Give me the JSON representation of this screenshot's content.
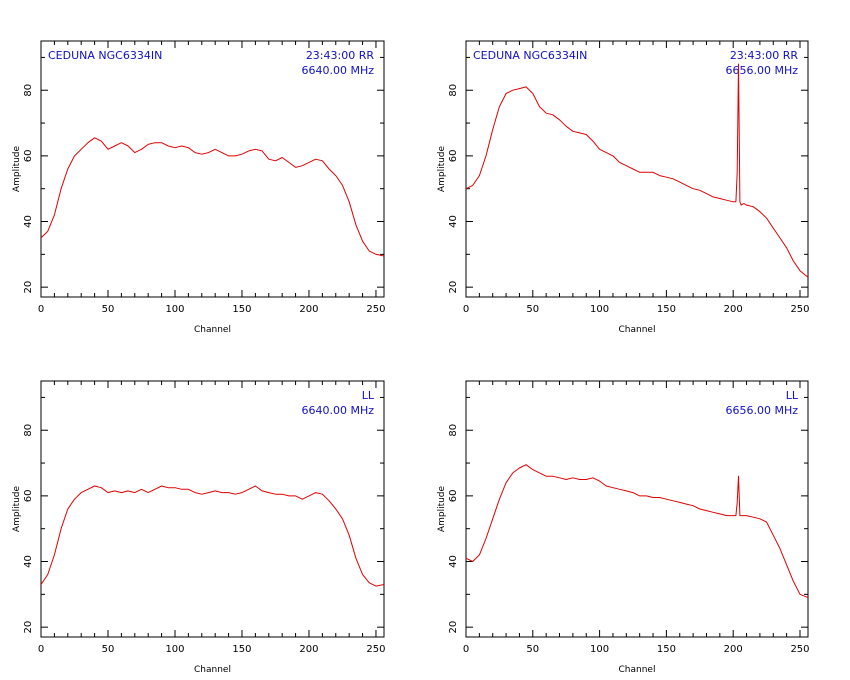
{
  "chart_data": [
    {
      "type": "line",
      "annotations": {
        "left": "CEDUNA NGC6334IN",
        "right_top": "23:43:00 RR",
        "right_bottom": "6640.00 MHz"
      },
      "xlabel": "Channel",
      "ylabel": "Amplitude",
      "xlim": [
        0,
        256
      ],
      "ylim": [
        17,
        95
      ],
      "xticks": [
        0,
        50,
        100,
        150,
        200,
        250
      ],
      "yticks": [
        20,
        40,
        60,
        80
      ],
      "grid": false,
      "series": [
        {
          "color": "#e00000",
          "x": [
            0,
            5,
            10,
            15,
            20,
            25,
            30,
            35,
            40,
            45,
            50,
            55,
            60,
            65,
            70,
            75,
            80,
            85,
            90,
            95,
            100,
            105,
            110,
            115,
            120,
            125,
            130,
            135,
            140,
            145,
            150,
            155,
            160,
            165,
            170,
            175,
            180,
            185,
            190,
            195,
            200,
            205,
            210,
            215,
            220,
            225,
            230,
            235,
            240,
            245,
            250,
            256
          ],
          "y": [
            35,
            37,
            42,
            50,
            56,
            60,
            62,
            64,
            65.5,
            64.5,
            62,
            63,
            64,
            63,
            61,
            62,
            63.5,
            64,
            64,
            63,
            62.5,
            63,
            62.5,
            61,
            60.5,
            61,
            62,
            61,
            60,
            60,
            60.5,
            61.5,
            62,
            61.5,
            59,
            58.5,
            59.5,
            58,
            56.5,
            57,
            58,
            59,
            58.5,
            56,
            54,
            51,
            46,
            39,
            34,
            31,
            30,
            29.5
          ]
        }
      ]
    },
    {
      "type": "line",
      "annotations": {
        "left": "CEDUNA NGC6334IN",
        "right_top": "23:43:00 RR",
        "right_bottom": "6656.00 MHz"
      },
      "xlabel": "Channel",
      "ylabel": "Amplitude",
      "xlim": [
        0,
        256
      ],
      "ylim": [
        17,
        95
      ],
      "xticks": [
        0,
        50,
        100,
        150,
        200,
        250
      ],
      "yticks": [
        20,
        40,
        60,
        80
      ],
      "grid": false,
      "series": [
        {
          "color": "#e00000",
          "x": [
            0,
            5,
            10,
            15,
            20,
            25,
            30,
            35,
            40,
            45,
            50,
            55,
            60,
            65,
            70,
            75,
            80,
            85,
            90,
            95,
            100,
            105,
            110,
            115,
            120,
            125,
            130,
            135,
            140,
            145,
            150,
            155,
            160,
            165,
            170,
            175,
            180,
            185,
            190,
            195,
            200,
            202,
            203,
            204,
            205,
            206,
            208,
            210,
            215,
            220,
            225,
            230,
            235,
            240,
            245,
            250,
            256
          ],
          "y": [
            50,
            51,
            54,
            60,
            68,
            75,
            79,
            80,
            80.5,
            81,
            79,
            75,
            73,
            72.5,
            71,
            69,
            67.5,
            67,
            66.5,
            64.5,
            62,
            61,
            60,
            58,
            57,
            56,
            55,
            55,
            55,
            54,
            53.5,
            53,
            52,
            51,
            50,
            49.5,
            48.5,
            47.5,
            47,
            46.5,
            46,
            46,
            55,
            88,
            46,
            45,
            45.5,
            45,
            44.5,
            43,
            41,
            38,
            35,
            32,
            28,
            25,
            23
          ]
        }
      ]
    },
    {
      "type": "line",
      "annotations": {
        "left": "",
        "right_top": "LL",
        "right_bottom": "6640.00 MHz"
      },
      "xlabel": "Channel",
      "ylabel": "Amplitude",
      "xlim": [
        0,
        256
      ],
      "ylim": [
        17,
        95
      ],
      "xticks": [
        0,
        50,
        100,
        150,
        200,
        250
      ],
      "yticks": [
        20,
        40,
        60,
        80
      ],
      "grid": false,
      "series": [
        {
          "color": "#e00000",
          "x": [
            0,
            5,
            10,
            15,
            20,
            25,
            30,
            35,
            40,
            45,
            50,
            55,
            60,
            65,
            70,
            75,
            80,
            85,
            90,
            95,
            100,
            105,
            110,
            115,
            120,
            125,
            130,
            135,
            140,
            145,
            150,
            155,
            160,
            165,
            170,
            175,
            180,
            185,
            190,
            195,
            200,
            205,
            210,
            215,
            220,
            225,
            230,
            235,
            240,
            245,
            250,
            256
          ],
          "y": [
            33,
            36,
            42,
            50,
            56,
            59,
            61,
            62,
            63,
            62.5,
            61,
            61.5,
            61,
            61.5,
            61,
            62,
            61,
            62,
            63,
            62.5,
            62.5,
            62,
            62,
            61,
            60.5,
            61,
            61.5,
            61,
            61,
            60.5,
            61,
            62,
            63,
            61.5,
            61,
            60.5,
            60.5,
            60,
            60,
            59,
            60,
            61,
            60.5,
            58.5,
            56,
            53,
            48,
            41,
            36,
            33.5,
            32.5,
            33
          ]
        }
      ]
    },
    {
      "type": "line",
      "annotations": {
        "left": "",
        "right_top": "LL",
        "right_bottom": "6656.00 MHz"
      },
      "xlabel": "Channel",
      "ylabel": "Amplitude",
      "xlim": [
        0,
        256
      ],
      "ylim": [
        17,
        95
      ],
      "xticks": [
        0,
        50,
        100,
        150,
        200,
        250
      ],
      "yticks": [
        20,
        40,
        60,
        80
      ],
      "grid": false,
      "series": [
        {
          "color": "#e00000",
          "x": [
            0,
            5,
            10,
            15,
            20,
            25,
            30,
            35,
            40,
            45,
            50,
            55,
            60,
            65,
            70,
            75,
            80,
            85,
            90,
            95,
            100,
            105,
            110,
            115,
            120,
            125,
            130,
            135,
            140,
            145,
            150,
            155,
            160,
            165,
            170,
            175,
            180,
            185,
            190,
            195,
            200,
            202,
            203,
            204,
            205,
            206,
            208,
            210,
            215,
            220,
            225,
            230,
            235,
            240,
            245,
            250,
            256
          ],
          "y": [
            41,
            40,
            42,
            47,
            53,
            59,
            64,
            67,
            68.5,
            69.5,
            68,
            67,
            66,
            66,
            65.5,
            65,
            65.5,
            65,
            65,
            65.5,
            64.5,
            63,
            62.5,
            62,
            61.5,
            61,
            60,
            60,
            59.5,
            59.5,
            59,
            58.5,
            58,
            57.5,
            57,
            56,
            55.5,
            55,
            54.5,
            54,
            54,
            54,
            58,
            66,
            54,
            54,
            54,
            54,
            53.5,
            53,
            52,
            48,
            44,
            39,
            34,
            30,
            29
          ]
        }
      ]
    }
  ]
}
